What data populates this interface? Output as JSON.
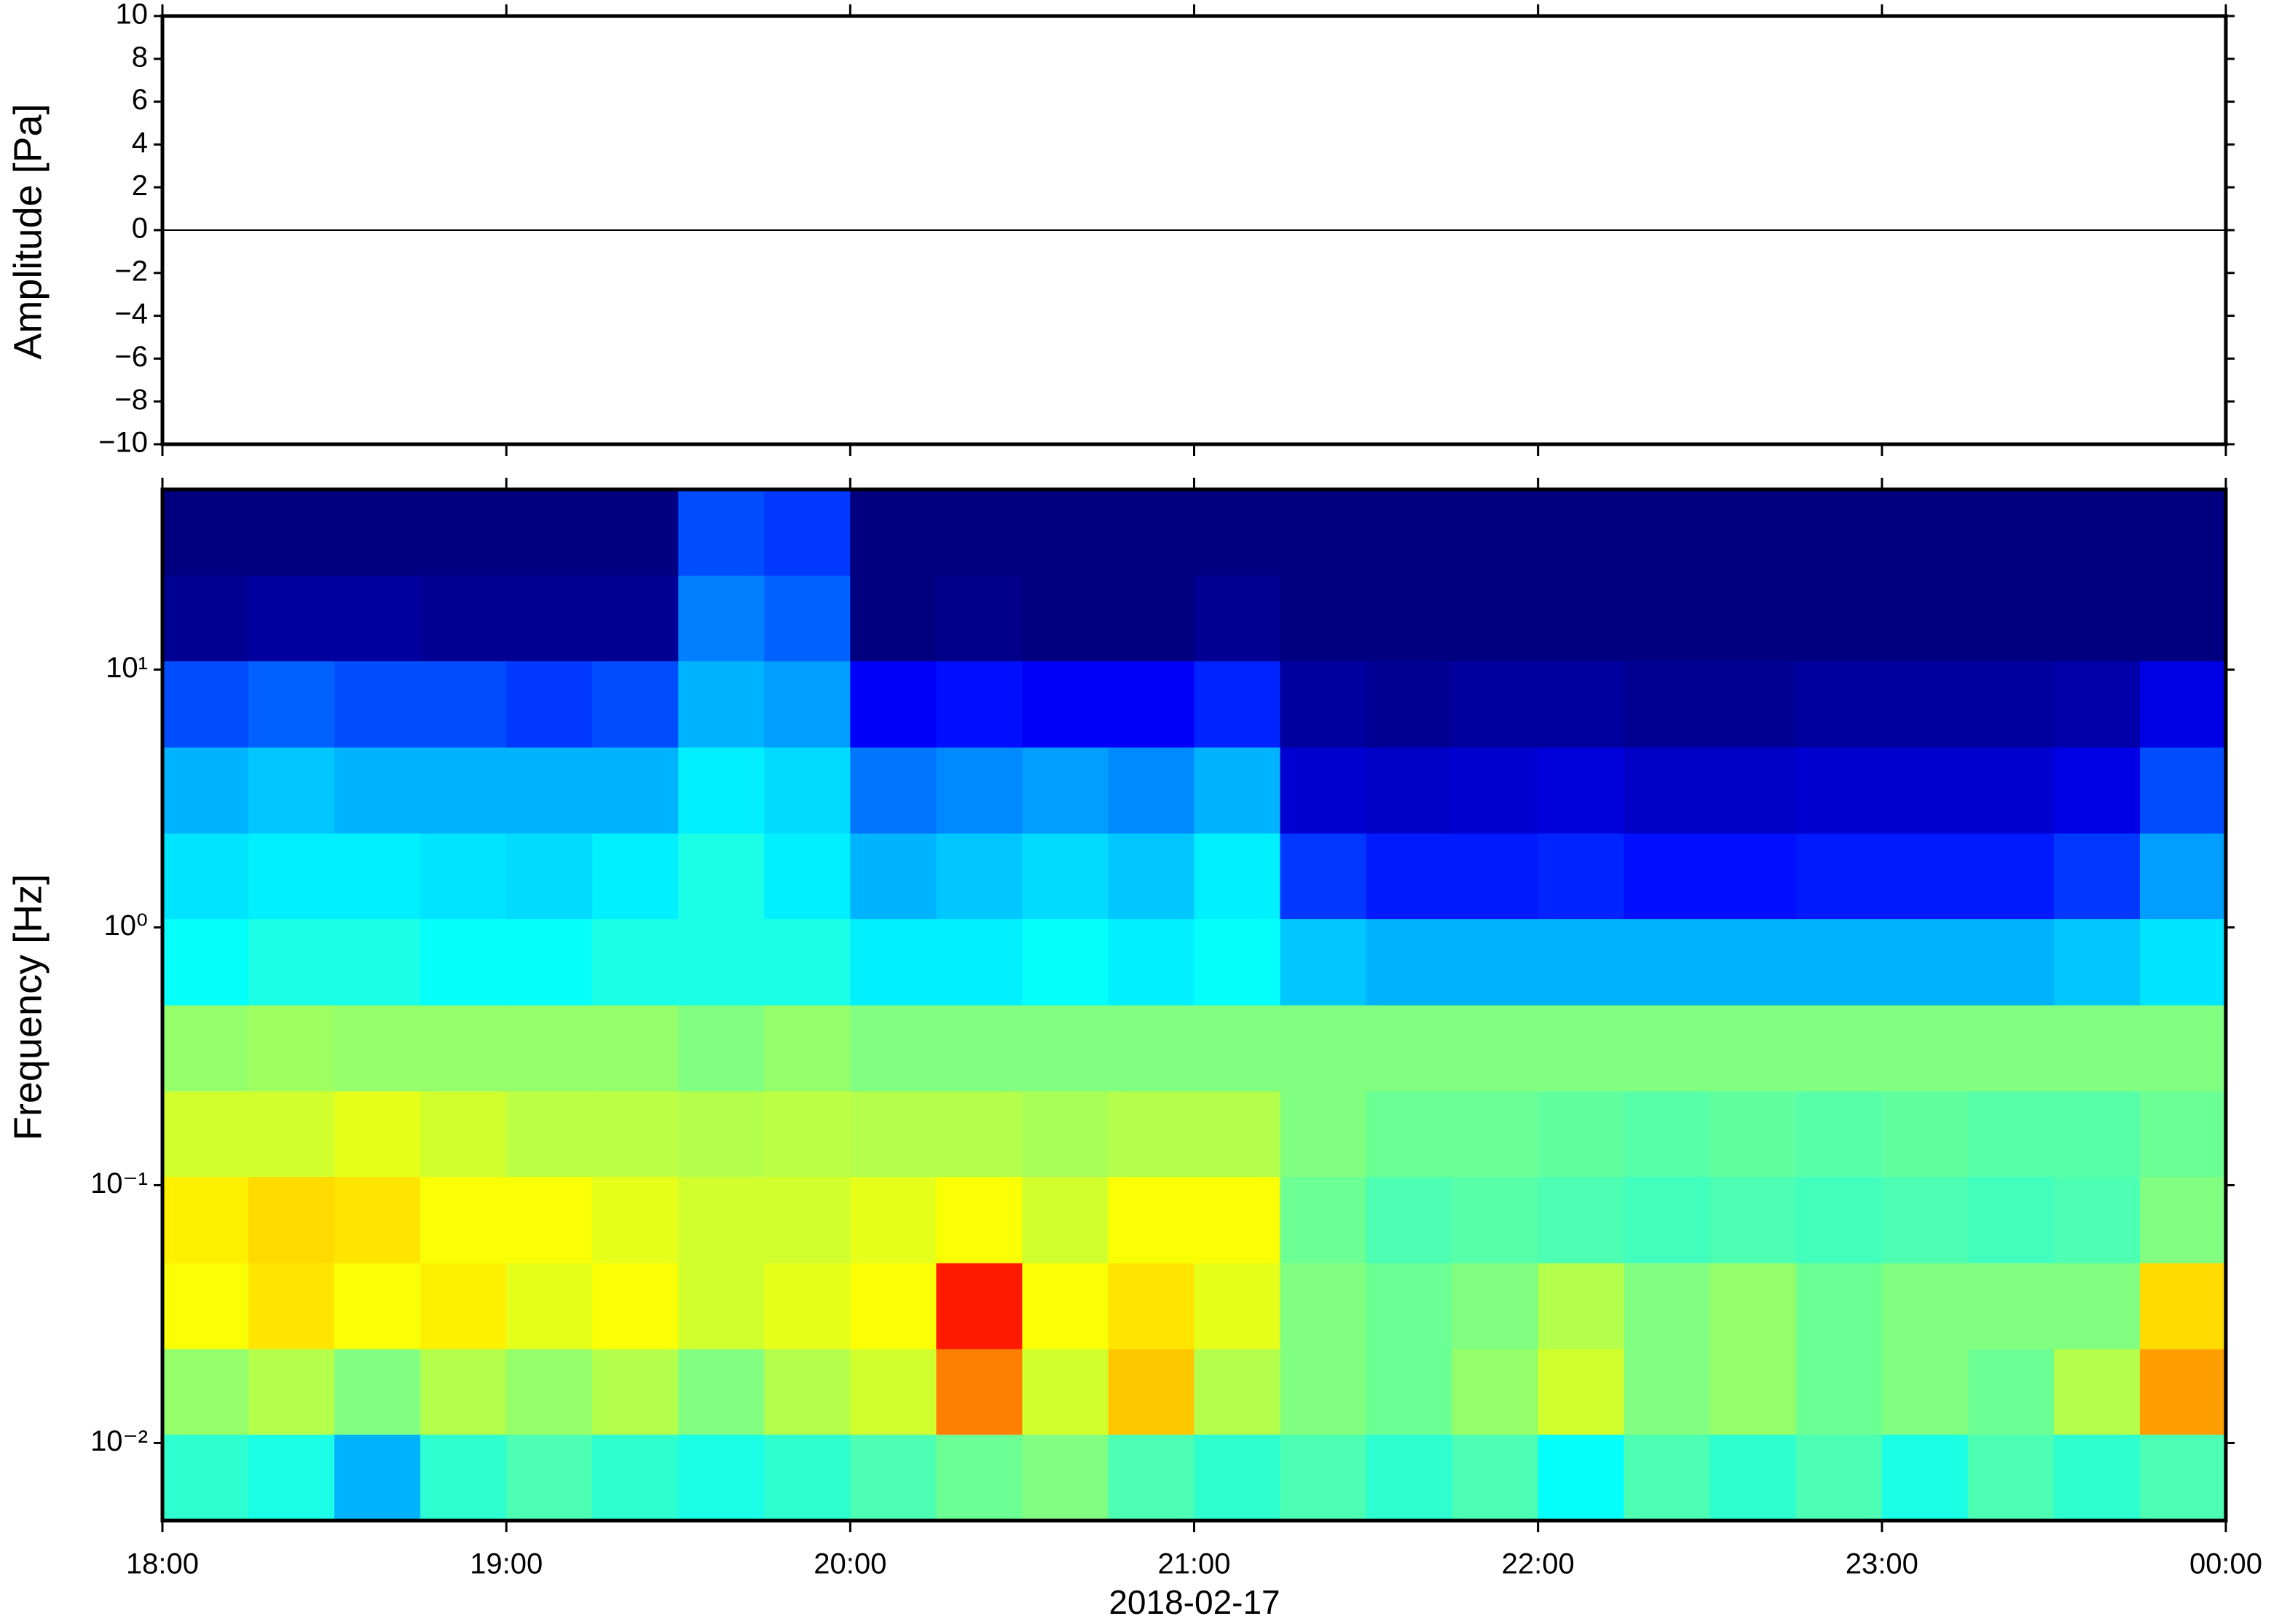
{
  "chart_data": [
    {
      "type": "line",
      "ylabel": "Amplitude [Pa]",
      "x": [
        18,
        18.5,
        19,
        19.5,
        20,
        20.5,
        21,
        21.5,
        22,
        22.5,
        23,
        23.5,
        24
      ],
      "values": [
        0,
        0,
        0,
        0,
        0,
        0,
        0,
        0,
        0,
        0,
        0,
        0,
        0
      ],
      "color": "#000000",
      "xlim": [
        18,
        24
      ],
      "xticks": [
        18,
        19,
        20,
        21,
        22,
        23,
        24
      ],
      "ylim": [
        -10,
        10
      ],
      "yticks": [
        {
          "value": -10,
          "label": "−10"
        },
        {
          "value": -8,
          "label": "−8"
        },
        {
          "value": -6,
          "label": "−6"
        },
        {
          "value": -4,
          "label": "−4"
        },
        {
          "value": -2,
          "label": "−2"
        },
        0,
        2,
        4,
        6,
        8,
        10
      ]
    },
    {
      "type": "heatmap",
      "ylabel": "Frequency [Hz]",
      "xlabel": "2018-02-17",
      "colormap": "jet",
      "log_y": true,
      "xlim": [
        18,
        24
      ],
      "xticks": [
        {
          "value": 18,
          "label": "18:00"
        },
        {
          "value": 19,
          "label": "19:00"
        },
        {
          "value": 20,
          "label": "20:00"
        },
        {
          "value": 21,
          "label": "21:00"
        },
        {
          "value": 22,
          "label": "22:00"
        },
        {
          "value": 23,
          "label": "23:00"
        },
        {
          "value": 24,
          "label": "00:00"
        }
      ],
      "ylim": [
        0.005,
        50
      ],
      "yticks": [
        {
          "value": 0.01,
          "label": "10⁻²"
        },
        {
          "value": 0.1,
          "label": "10⁻¹"
        },
        {
          "value": 1,
          "label": "10⁰"
        },
        {
          "value": 10,
          "label": "10¹"
        }
      ],
      "x_bins": [
        18,
        18.25,
        18.5,
        18.75,
        19,
        19.25,
        19.5,
        19.75,
        20,
        20.25,
        20.5,
        20.75,
        21,
        21.25,
        21.5,
        21.75,
        22,
        22.25,
        22.5,
        22.75,
        23,
        23.25,
        23.5,
        23.75,
        24
      ],
      "y_bins": [
        0.005,
        0.0108,
        0.0232,
        0.05,
        0.108,
        0.232,
        0.5,
        1.08,
        2.32,
        5,
        10.8,
        23.2,
        50
      ],
      "z": [
        [
          0.42,
          0.4,
          0.3,
          0.42,
          0.45,
          0.42,
          0.4,
          0.42,
          0.45,
          0.48,
          0.5,
          0.45,
          0.42,
          0.45,
          0.42,
          0.45,
          0.38,
          0.45,
          0.42,
          0.45,
          0.4,
          0.45,
          0.42,
          0.45
        ],
        [
          0.52,
          0.55,
          0.5,
          0.55,
          0.52,
          0.55,
          0.5,
          0.55,
          0.58,
          0.75,
          0.58,
          0.68,
          0.55,
          0.5,
          0.48,
          0.52,
          0.58,
          0.5,
          0.52,
          0.48,
          0.5,
          0.48,
          0.55,
          0.72
        ],
        [
          0.62,
          0.65,
          0.62,
          0.64,
          0.6,
          0.62,
          0.58,
          0.6,
          0.62,
          0.85,
          0.62,
          0.65,
          0.6,
          0.5,
          0.48,
          0.5,
          0.55,
          0.5,
          0.52,
          0.48,
          0.5,
          0.5,
          0.5,
          0.66
        ],
        [
          0.64,
          0.66,
          0.65,
          0.62,
          0.62,
          0.6,
          0.58,
          0.58,
          0.6,
          0.62,
          0.58,
          0.62,
          0.62,
          0.48,
          0.45,
          0.46,
          0.45,
          0.44,
          0.45,
          0.44,
          0.45,
          0.44,
          0.45,
          0.5
        ],
        [
          0.58,
          0.58,
          0.6,
          0.58,
          0.56,
          0.56,
          0.55,
          0.56,
          0.55,
          0.55,
          0.54,
          0.55,
          0.55,
          0.5,
          0.48,
          0.48,
          0.47,
          0.46,
          0.47,
          0.46,
          0.47,
          0.46,
          0.46,
          0.48
        ],
        [
          0.52,
          0.53,
          0.52,
          0.52,
          0.52,
          0.52,
          0.5,
          0.52,
          0.5,
          0.5,
          0.5,
          0.5,
          0.5,
          0.5,
          0.5,
          0.5,
          0.5,
          0.5,
          0.5,
          0.5,
          0.5,
          0.5,
          0.5,
          0.5
        ],
        [
          0.38,
          0.4,
          0.4,
          0.38,
          0.38,
          0.4,
          0.4,
          0.4,
          0.36,
          0.36,
          0.38,
          0.36,
          0.38,
          0.32,
          0.3,
          0.3,
          0.3,
          0.3,
          0.3,
          0.3,
          0.3,
          0.3,
          0.32,
          0.35
        ],
        [
          0.35,
          0.36,
          0.36,
          0.35,
          0.34,
          0.36,
          0.4,
          0.36,
          0.3,
          0.32,
          0.34,
          0.32,
          0.36,
          0.18,
          0.15,
          0.15,
          0.16,
          0.14,
          0.14,
          0.15,
          0.15,
          0.15,
          0.18,
          0.28
        ],
        [
          0.3,
          0.32,
          0.3,
          0.3,
          0.3,
          0.3,
          0.36,
          0.34,
          0.24,
          0.26,
          0.28,
          0.26,
          0.3,
          0.08,
          0.07,
          0.08,
          0.09,
          0.07,
          0.07,
          0.08,
          0.08,
          0.08,
          0.1,
          0.2
        ],
        [
          0.2,
          0.22,
          0.2,
          0.2,
          0.18,
          0.2,
          0.3,
          0.28,
          0.12,
          0.14,
          0.12,
          0.12,
          0.16,
          0.03,
          0.02,
          0.03,
          0.03,
          0.02,
          0.02,
          0.03,
          0.03,
          0.03,
          0.04,
          0.1
        ],
        [
          0.02,
          0.03,
          0.03,
          0.02,
          0.02,
          0.02,
          0.25,
          0.22,
          0.0,
          0.01,
          0.0,
          0.0,
          0.02,
          0.0,
          0.0,
          0.0,
          0.0,
          0.0,
          0.0,
          0.0,
          0.0,
          0.0,
          0.0,
          0.0
        ],
        [
          0.0,
          0.0,
          0.0,
          0.0,
          0.0,
          0.0,
          0.2,
          0.18,
          0.0,
          0.0,
          0.0,
          0.0,
          0.0,
          0.0,
          0.0,
          0.0,
          0.0,
          0.0,
          0.0,
          0.0,
          0.0,
          0.0,
          0.0,
          0.0
        ]
      ]
    }
  ]
}
